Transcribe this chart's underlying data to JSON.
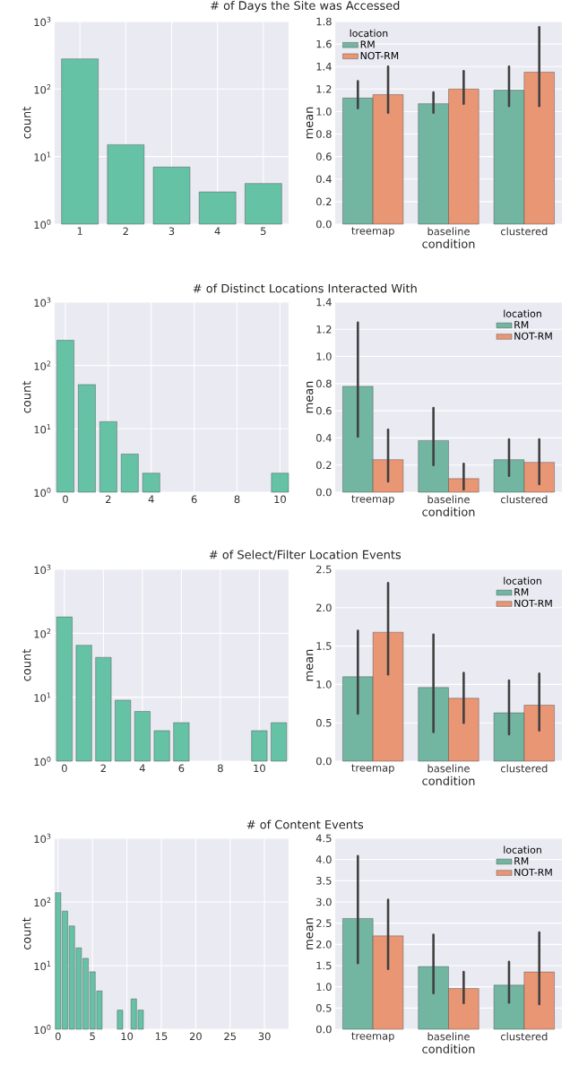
{
  "chart_data": [
    {
      "type": "bar",
      "title": "# of Days the Site was Accessed",
      "ylabel": "count",
      "x": [
        1,
        2,
        3,
        4,
        5
      ],
      "values": [
        280,
        15,
        7,
        3,
        4
      ],
      "color": "#66c2a5",
      "log": "y",
      "grid": true,
      "xlim": [
        0.45,
        5.55
      ],
      "xticks": [
        1,
        2,
        3,
        4,
        5
      ],
      "ylim": [
        1,
        1000
      ],
      "yticks": [
        {
          "value": 1,
          "label": "10$^{0}$"
        },
        {
          "value": 10,
          "label": "10$^{1}$"
        },
        {
          "value": 100,
          "label": "10$^{2}$"
        },
        {
          "value": 1000,
          "label": "10$^{3}$"
        }
      ]
    },
    {
      "type": "bar",
      "xlabel": "condition",
      "ylabel": "mean",
      "legend_title": "location",
      "legend": "top left",
      "grid": "y",
      "categories": [
        "treemap",
        "baseline",
        "clustered"
      ],
      "ylim": [
        0,
        1.8
      ],
      "yticks": [
        {
          "value": 0,
          "label": "0.0"
        },
        0.2,
        0.4,
        0.6,
        0.8,
        {
          "value": 1,
          "label": "1.0"
        },
        1.2,
        1.4,
        1.6,
        1.8
      ],
      "series": [
        {
          "name": "RM",
          "color": "#72b6a1",
          "values": [
            1.12,
            1.07,
            1.19
          ],
          "errors": [
            [
              1.03,
              1.27
            ],
            [
              0.99,
              1.17
            ],
            [
              1.05,
              1.4
            ]
          ]
        },
        {
          "name": "NOT-RM",
          "color": "#e99675",
          "values": [
            1.15,
            1.2,
            1.35
          ],
          "errors": [
            [
              0.99,
              1.4
            ],
            [
              1.07,
              1.36
            ],
            [
              1.05,
              1.75
            ]
          ]
        }
      ]
    },
    {
      "type": "bar",
      "title": "# of Distinct Locations Interacted With",
      "ylabel": "count",
      "x": [
        0,
        1,
        2,
        3,
        4,
        10
      ],
      "values": [
        250,
        50,
        13,
        4,
        2,
        2
      ],
      "color": "#66c2a5",
      "log": "y",
      "grid": true,
      "xlim": [
        -0.5,
        10.4
      ],
      "xticks": [
        0,
        2,
        4,
        6,
        8,
        10
      ],
      "ylim": [
        1,
        1000
      ],
      "yticks": [
        {
          "value": 1,
          "label": "10$^{0}$"
        },
        {
          "value": 10,
          "label": "10$^{1}$"
        },
        {
          "value": 100,
          "label": "10$^{2}$"
        },
        {
          "value": 1000,
          "label": "10$^{3}$"
        }
      ]
    },
    {
      "type": "bar",
      "xlabel": "condition",
      "ylabel": "mean",
      "legend_title": "location",
      "legend": "top right",
      "grid": "y",
      "categories": [
        "treemap",
        "baseline",
        "clustered"
      ],
      "ylim": [
        0,
        1.4
      ],
      "yticks": [
        {
          "value": 0,
          "label": "0.0"
        },
        0.2,
        0.4,
        0.6,
        0.8,
        {
          "value": 1,
          "label": "1.0"
        },
        1.2,
        1.4
      ],
      "series": [
        {
          "name": "RM",
          "color": "#72b6a1",
          "values": [
            0.78,
            0.38,
            0.24
          ],
          "errors": [
            [
              0.41,
              1.25
            ],
            [
              0.2,
              0.62
            ],
            [
              0.12,
              0.39
            ]
          ]
        },
        {
          "name": "NOT-RM",
          "color": "#e99675",
          "values": [
            0.24,
            0.1,
            0.22
          ],
          "errors": [
            [
              0.08,
              0.46
            ],
            [
              0.02,
              0.21
            ],
            [
              0.06,
              0.39
            ]
          ]
        }
      ]
    },
    {
      "type": "bar",
      "title": "# of Select/Filter Location Events",
      "ylabel": "count",
      "x": [
        0,
        1,
        2,
        3,
        4,
        5,
        6,
        10,
        11
      ],
      "values": [
        180,
        65,
        42,
        9,
        6,
        3,
        4,
        3,
        4
      ],
      "color": "#66c2a5",
      "log": "y",
      "grid": true,
      "xlim": [
        -0.5,
        11.5
      ],
      "xticks": [
        0,
        2,
        4,
        6,
        8,
        10
      ],
      "ylim": [
        1,
        1000
      ],
      "yticks": [
        {
          "value": 1,
          "label": "10$^{0}$"
        },
        {
          "value": 10,
          "label": "10$^{1}$"
        },
        {
          "value": 100,
          "label": "10$^{2}$"
        },
        {
          "value": 1000,
          "label": "10$^{3}$"
        }
      ]
    },
    {
      "type": "bar",
      "xlabel": "condition",
      "ylabel": "mean",
      "legend_title": "location",
      "legend": "top right",
      "grid": "y",
      "categories": [
        "treemap",
        "baseline",
        "clustered"
      ],
      "ylim": [
        0,
        2.5
      ],
      "yticks": [
        {
          "value": 0,
          "label": "0.0"
        },
        0.5,
        {
          "value": 1,
          "label": "1.0"
        },
        1.5,
        {
          "value": 2,
          "label": "2.0"
        },
        2.5
      ],
      "series": [
        {
          "name": "RM",
          "color": "#72b6a1",
          "values": [
            1.1,
            0.96,
            0.63
          ],
          "errors": [
            [
              0.62,
              1.7
            ],
            [
              0.38,
              1.65
            ],
            [
              0.35,
              1.05
            ]
          ]
        },
        {
          "name": "NOT-RM",
          "color": "#e99675",
          "values": [
            1.68,
            0.82,
            0.73
          ],
          "errors": [
            [
              1.13,
              2.32
            ],
            [
              0.5,
              1.15
            ],
            [
              0.4,
              1.14
            ]
          ]
        }
      ]
    },
    {
      "type": "bar",
      "title": "# of Content Events",
      "ylabel": "count",
      "x": [
        0,
        1,
        2,
        3,
        4,
        5,
        6,
        9,
        11,
        12
      ],
      "values": [
        140,
        72,
        42,
        19,
        13,
        8,
        4,
        2,
        3,
        2
      ],
      "color": "#66c2a5",
      "log": "y",
      "grid": true,
      "xlim": [
        -0.5,
        33.5
      ],
      "xticks": [
        0,
        5,
        10,
        15,
        20,
        25,
        30
      ],
      "ylim": [
        1,
        1000
      ],
      "yticks": [
        {
          "value": 1,
          "label": "10$^{0}$"
        },
        {
          "value": 10,
          "label": "10$^{1}$"
        },
        {
          "value": 100,
          "label": "10$^{2}$"
        },
        {
          "value": 1000,
          "label": "10$^{3}$"
        }
      ]
    },
    {
      "type": "bar",
      "xlabel": "condition",
      "ylabel": "mean",
      "legend_title": "location",
      "legend": "top right",
      "grid": "y",
      "categories": [
        "treemap",
        "baseline",
        "clustered"
      ],
      "ylim": [
        0,
        4.5
      ],
      "yticks": [
        {
          "value": 0,
          "label": "0.0"
        },
        0.5,
        {
          "value": 1,
          "label": "1.0"
        },
        1.5,
        {
          "value": 2,
          "label": "2.0"
        },
        2.5,
        {
          "value": 3,
          "label": "3.0"
        },
        3.5,
        {
          "value": 4,
          "label": "4.0"
        },
        4.5
      ],
      "series": [
        {
          "name": "RM",
          "color": "#72b6a1",
          "values": [
            2.61,
            1.48,
            1.04
          ],
          "errors": [
            [
              1.56,
              4.08
            ],
            [
              0.85,
              2.23
            ],
            [
              0.63,
              1.59
            ]
          ]
        },
        {
          "name": "NOT-RM",
          "color": "#e99675",
          "values": [
            2.2,
            0.96,
            1.35
          ],
          "errors": [
            [
              1.42,
              3.05
            ],
            [
              0.62,
              1.35
            ],
            [
              0.59,
              2.28
            ]
          ]
        }
      ]
    }
  ]
}
